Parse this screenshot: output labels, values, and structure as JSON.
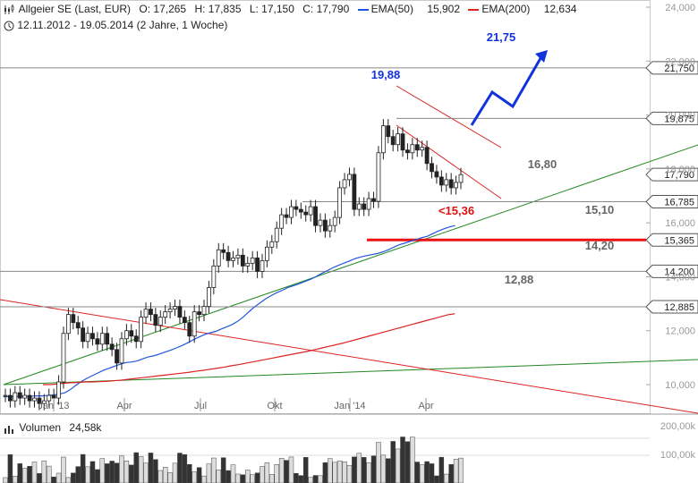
{
  "header": {
    "title": "Allgeier SE (Last, EUR)",
    "open": "O: 17,265",
    "high": "H: 17,835",
    "low": "L: 17,150",
    "close": "C: 17,790",
    "ema50_label": "EMA(50)",
    "ema50_value": "15,902",
    "ema200_label": "EMA(200)",
    "ema200_value": "12,634",
    "period": "12.11.2012 - 19.05.2014 (2 Jahre, 1 Woche)",
    "volume_label": "Volumen",
    "volume_value": "24,58k"
  },
  "colors": {
    "ema50": "#2255dd",
    "ema200": "#dd2222",
    "trend_green": "#228822",
    "trend_red": "#dd2222",
    "arrow": "#1133dd",
    "support": "#ee1111"
  },
  "chart_data": {
    "type": "candlestick",
    "y_axis": {
      "ylim": [
        9.0,
        24.0
      ],
      "ticks": [
        "24,000",
        "22,000",
        "20,000",
        "18,000",
        "16,000",
        "14,000",
        "12,000",
        "10,000"
      ]
    },
    "x_axis": {
      "ticks": [
        "Jan '13",
        "Apr",
        "Jul",
        "Okt",
        "Jan '14",
        "Apr"
      ]
    },
    "price_levels": [
      {
        "value": 21.75,
        "label": "21,750"
      },
      {
        "value": 19.875,
        "label": "19,875"
      },
      {
        "value": 17.79,
        "label": "17,790"
      },
      {
        "value": 16.785,
        "label": "16,785"
      },
      {
        "value": 15.365,
        "label": "15,365"
      },
      {
        "value": 14.2,
        "label": "14,200"
      },
      {
        "value": 12.885,
        "label": "12,885"
      }
    ],
    "annotations": [
      {
        "text": "19,88",
        "value": 19.88,
        "color": "#1133dd"
      },
      {
        "text": "21,75",
        "value": 21.75,
        "color": "#1133dd"
      },
      {
        "text": "16,80",
        "value": 16.8,
        "color": "#666666"
      },
      {
        "text": "<15,36",
        "value": 15.36,
        "color": "#dd1111"
      },
      {
        "text": "15,10",
        "value": 15.1,
        "color": "#666666"
      },
      {
        "text": "14,20",
        "value": 14.2,
        "color": "#666666"
      },
      {
        "text": "12,88",
        "value": 12.88,
        "color": "#666666"
      }
    ],
    "candles_close": [
      9.6,
      9.4,
      9.7,
      9.5,
      9.6,
      9.4,
      9.5,
      9.3,
      9.4,
      9.6,
      9.5,
      10.1,
      11.9,
      12.6,
      12.3,
      12.1,
      11.6,
      11.9,
      11.7,
      11.5,
      11.9,
      11.5,
      11.3,
      10.8,
      11.7,
      12.0,
      11.8,
      11.6,
      12.5,
      12.8,
      12.6,
      12.2,
      12.5,
      12.7,
      12.8,
      12.9,
      12.5,
      12.3,
      11.8,
      12.7,
      12.6,
      12.9,
      13.6,
      14.4,
      15.0,
      14.9,
      14.6,
      14.7,
      14.8,
      14.4,
      14.5,
      14.7,
      14.2,
      14.6,
      15.1,
      15.3,
      15.8,
      16.3,
      16.2,
      16.6,
      16.5,
      16.4,
      16.3,
      16.6,
      15.9,
      16.1,
      15.7,
      15.9,
      16.2,
      17.3,
      17.6,
      17.8,
      16.5,
      16.7,
      16.5,
      16.9,
      16.8,
      18.6,
      19.6,
      19.2,
      18.9,
      19.3,
      18.7,
      18.6,
      18.9,
      18.7,
      18.8,
      18.2,
      17.9,
      17.7,
      17.4,
      17.6,
      17.3,
      17.5,
      17.79
    ],
    "ema50": [
      9.55,
      9.55,
      9.56,
      9.56,
      9.57,
      9.57,
      9.58,
      9.58,
      9.6,
      9.62,
      9.65,
      9.7,
      9.82,
      9.98,
      10.12,
      10.24,
      10.34,
      10.44,
      10.54,
      10.61,
      10.69,
      10.76,
      10.82,
      10.84,
      10.88,
      10.96,
      11.03,
      11.07,
      11.14,
      11.21,
      11.28,
      11.36,
      11.45,
      11.55,
      11.66,
      11.76,
      11.85,
      11.92,
      11.97,
      12.06,
      12.14,
      12.23,
      12.35,
      12.51,
      12.7,
      12.88,
      13.03,
      13.18,
      13.3,
      13.41,
      13.5,
      13.6,
      13.67,
      13.74,
      13.82,
      13.9,
      14.0,
      14.12,
      14.22,
      14.33,
      14.42,
      14.5,
      14.58,
      14.67,
      14.73,
      14.78,
      14.82,
      14.86,
      14.92,
      15.0,
      15.1,
      15.19,
      15.25,
      15.32,
      15.38,
      15.45,
      15.5,
      15.6,
      15.7,
      15.78,
      15.85,
      15.9
    ],
    "ema200": [
      10.0,
      10.0,
      10.02,
      10.05,
      10.07,
      10.08,
      10.1,
      10.1,
      10.11,
      10.12,
      10.14,
      10.16,
      10.19,
      10.22,
      10.25,
      10.28,
      10.31,
      10.34,
      10.37,
      10.4,
      10.43,
      10.46,
      10.5,
      10.53,
      10.57,
      10.61,
      10.65,
      10.7,
      10.74,
      10.79,
      10.84,
      10.89,
      10.94,
      10.99,
      11.04,
      11.09,
      11.14,
      11.19,
      11.24,
      11.3,
      11.36,
      11.42,
      11.48,
      11.54,
      11.61,
      11.68,
      11.75,
      11.82,
      11.89,
      11.96,
      12.03,
      12.1,
      12.17,
      12.24,
      12.31,
      12.38,
      12.45,
      12.52,
      12.59,
      12.63
    ],
    "volume_axis": [
      "200,00k",
      "100,00k"
    ]
  }
}
